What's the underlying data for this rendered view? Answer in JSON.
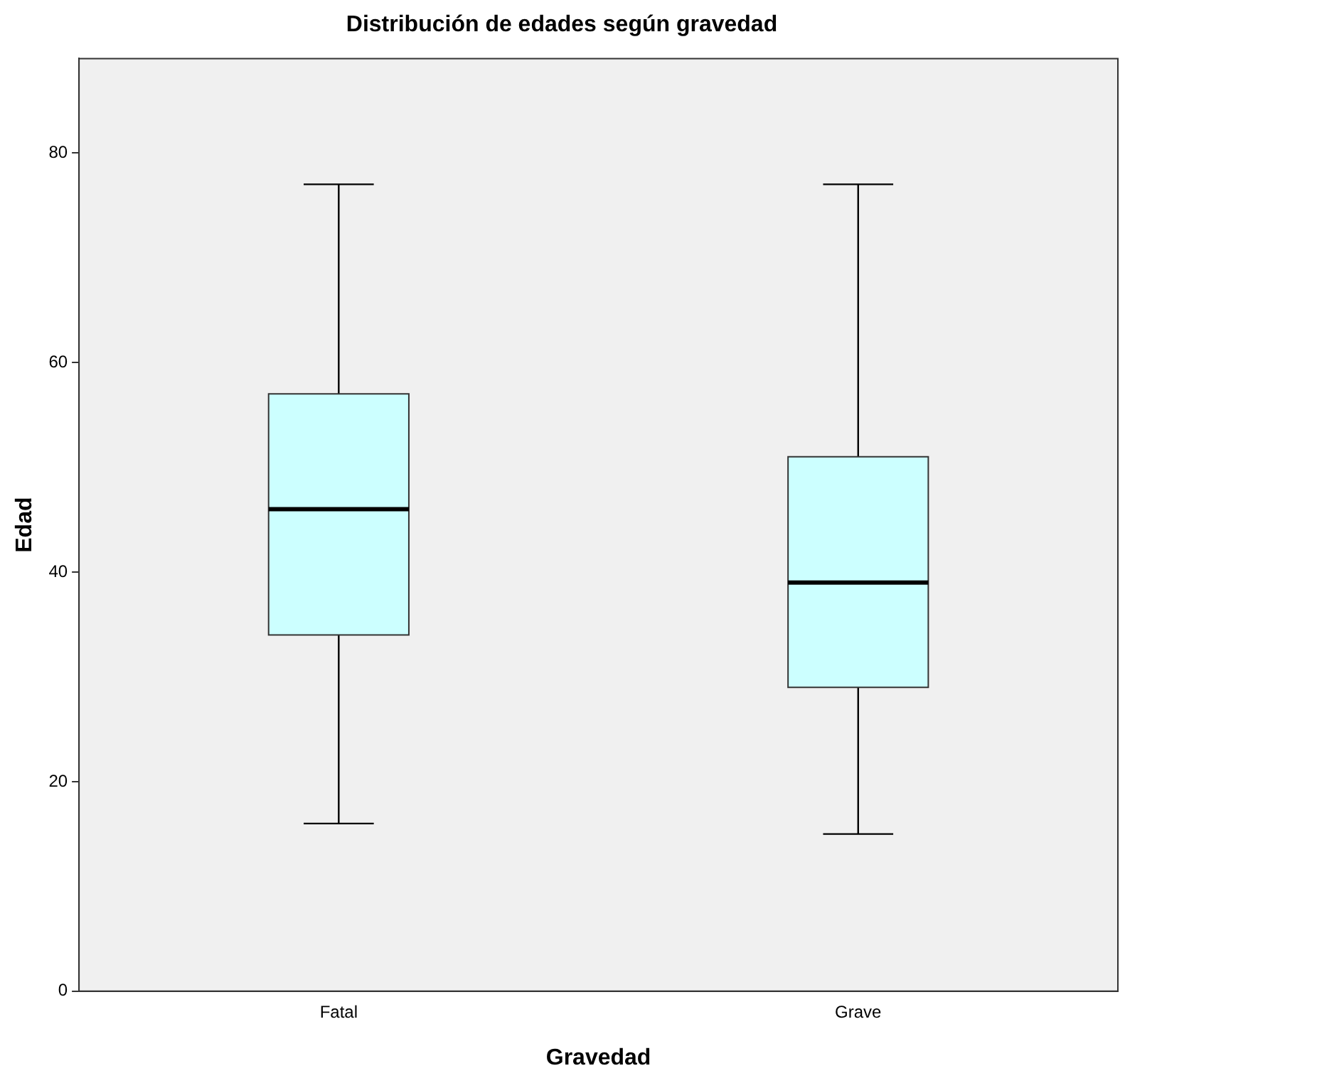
{
  "chart_data": {
    "type": "box",
    "title": "Distribución de edades según gravedad",
    "xlabel": "Gravedad",
    "ylabel": "Edad",
    "categories": [
      "Fatal",
      "Grave"
    ],
    "boxes": [
      {
        "low": 16,
        "q1": 34,
        "median": 46,
        "q3": 57,
        "high": 77
      },
      {
        "low": 15,
        "q1": 29,
        "median": 39,
        "q3": 51,
        "high": 77
      }
    ],
    "color": "#ccffff",
    "ylim": [
      0,
      89
    ],
    "yticks": [
      0,
      20,
      40,
      60,
      80
    ],
    "grid": false,
    "legend": false
  }
}
